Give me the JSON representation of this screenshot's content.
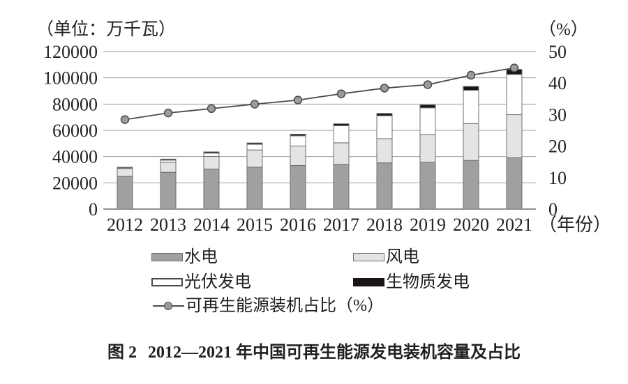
{
  "labels": {
    "left_axis_unit": "（单位：万千瓦）",
    "right_axis_unit": "（%）"
  },
  "legend": {
    "items": [
      {
        "label": "水电",
        "swatch": "hydro"
      },
      {
        "label": "风电",
        "swatch": "wind"
      },
      {
        "label": "光伏发电",
        "swatch": "solar"
      },
      {
        "label": "生物质发电",
        "swatch": "biomass"
      },
      {
        "label": "可再生能源装机占比（%）",
        "swatch": "line"
      }
    ]
  },
  "caption": {
    "figure_label": "图 2",
    "title": "2012—2021 年中国可再生能源发电装机容量及占比"
  },
  "chart_data": {
    "type": "bar",
    "subtype": "stacked-bars-with-line-overlay",
    "title": "2012—2021 年中国可再生能源发电装机容量及占比",
    "categories": [
      "2012",
      "2013",
      "2014",
      "2015",
      "2016",
      "2017",
      "2018",
      "2019",
      "2020",
      "2021"
    ],
    "series": [
      {
        "name": "水电",
        "color": "#a0a0a0",
        "values": [
          24890,
          28044,
          30486,
          31954,
          33211,
          34119,
          35226,
          35640,
          37016,
          39092
        ]
      },
      {
        "name": "风电",
        "color": "#e4e4e4",
        "values": [
          6083,
          7652,
          9657,
          13075,
          14864,
          16367,
          18426,
          21005,
          28153,
          32848
        ]
      },
      {
        "name": "光伏发电",
        "color": "#ffffff",
        "values": [
          341,
          1589,
          2486,
          4318,
          7742,
          13025,
          17446,
          20468,
          25343,
          30656
        ]
      },
      {
        "name": "生物质发电",
        "color": "#1c1314",
        "values": [
          580,
          779,
          948,
          1031,
          1214,
          1476,
          1781,
          2254,
          2952,
          3798
        ]
      }
    ],
    "line_series": {
      "name": "可再生能源装机占比（%）",
      "values": [
        28.4,
        30.5,
        31.9,
        33.3,
        34.6,
        36.6,
        38.4,
        39.5,
        42.5,
        44.8
      ],
      "axis": "right",
      "line_color": "#4f4a49",
      "marker_fill": "#9b9b9b"
    },
    "left_axis": {
      "label": "（单位：万千瓦）",
      "ticks": [
        0,
        20000,
        40000,
        60000,
        80000,
        100000,
        120000
      ],
      "min": 0,
      "max": 120000
    },
    "right_axis": {
      "label": "（%）",
      "ticks": [
        0,
        10,
        20,
        30,
        40,
        50
      ],
      "min": 0,
      "max": 50
    },
    "x_axis": {
      "unit_label": "（年份）"
    },
    "grid": true,
    "gridline_color": "#9b9b9b",
    "bar_border_color": "#6f6f6f",
    "legend_position": "bottom"
  }
}
